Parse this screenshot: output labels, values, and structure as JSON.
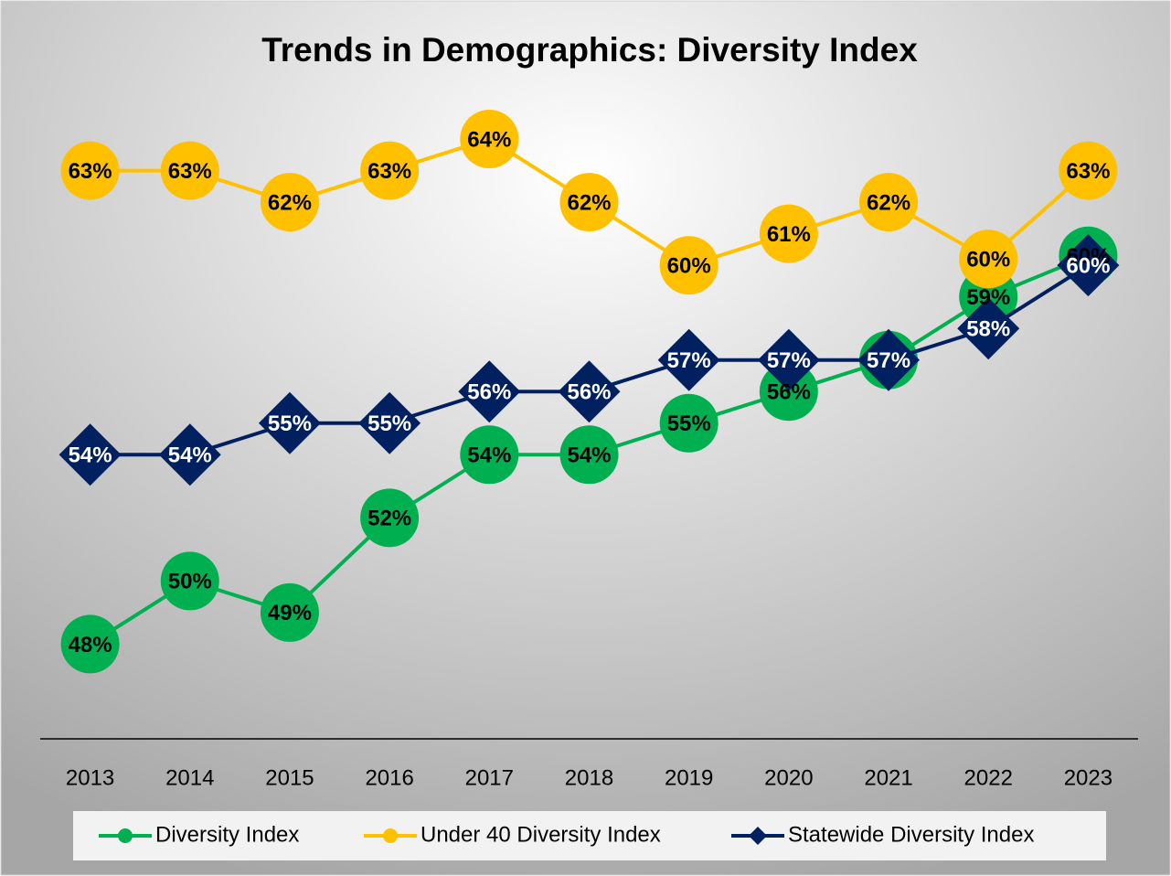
{
  "chart_data": {
    "type": "line",
    "title": "Trends in Demographics: Diversity Index",
    "categories": [
      "2013",
      "2014",
      "2015",
      "2016",
      "2017",
      "2018",
      "2019",
      "2020",
      "2021",
      "2022",
      "2023"
    ],
    "ylim": [
      45,
      66
    ],
    "legend": "bottom",
    "series": [
      {
        "name": "Diversity Index",
        "color": "#00b050",
        "marker": "circle",
        "values": [
          48,
          50,
          49,
          52,
          54,
          54,
          55,
          56,
          57,
          59,
          60.3
        ],
        "value_labels": [
          "48%",
          "50%",
          "49%",
          "52%",
          "54%",
          "54%",
          "55%",
          "56%",
          "57%",
          "59%",
          "60%"
        ]
      },
      {
        "name": "Under 40 Diversity Index",
        "color": "#ffc000",
        "marker": "circle",
        "values": [
          63,
          63,
          62,
          63,
          64,
          62,
          60,
          61,
          62,
          60.2,
          63
        ],
        "value_labels": [
          "63%",
          "63%",
          "62%",
          "63%",
          "64%",
          "62%",
          "60%",
          "61%",
          "62%",
          "60%",
          "63%"
        ]
      },
      {
        "name": "Statewide Diversity Index",
        "color": "#002060",
        "marker": "diamond",
        "values": [
          54,
          54,
          55,
          55,
          56,
          56,
          57,
          57,
          57,
          58,
          60
        ],
        "value_labels": [
          "54%",
          "54%",
          "55%",
          "55%",
          "56%",
          "56%",
          "57%",
          "57%",
          "57%",
          "58%",
          "60%"
        ]
      }
    ]
  }
}
